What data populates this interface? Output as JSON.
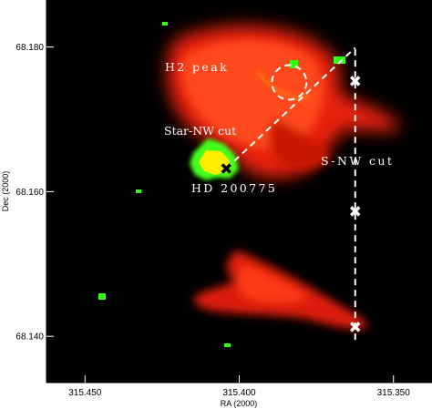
{
  "chart_data": {
    "type": "image",
    "xlabel": "RA (2000)",
    "ylabel": "Dec (2000)",
    "xlim": [
      315.4625,
      315.3375
    ],
    "ylim": [
      68.1336,
      68.1865
    ],
    "x_ticks": [
      {
        "value": 315.45,
        "label": "315.450"
      },
      {
        "value": 315.4,
        "label": "315.400"
      },
      {
        "value": 315.35,
        "label": "315.350"
      }
    ],
    "y_ticks": [
      {
        "value": 68.14,
        "label": "68.140"
      },
      {
        "value": 68.16,
        "label": "68.160"
      },
      {
        "value": 68.18,
        "label": "68.180"
      }
    ],
    "annotations": {
      "h2_peak": "H2 peak",
      "star_nw_cut": "Star-NW cut",
      "star": "HD 200775",
      "s_nw_cut": "S-NW cut"
    },
    "star_position": {
      "ra": 315.4042,
      "dec": 68.1632
    },
    "h2_peak_circle": {
      "ra": 315.3838,
      "dec": 68.1751,
      "radius_deg": 0.0056
    },
    "star_nw_cut": {
      "from": {
        "ra": 315.4042,
        "dec": 68.1632
      },
      "to": {
        "ra": 315.3624,
        "dec": 68.1799
      }
    },
    "s_nw_cut": {
      "ra": 315.3624,
      "dec_range": [
        68.1395,
        68.1803
      ]
    },
    "cut_markers": [
      {
        "ra": 315.3624,
        "dec": 68.1753
      },
      {
        "ra": 315.3624,
        "dec": 68.1573
      },
      {
        "ra": 315.3624,
        "dec": 68.1413
      }
    ],
    "colors": {
      "background": "#000000",
      "nebula": "#ff3a12",
      "h2_emission": "#33ff11",
      "star_core": "#ffee00",
      "overlay": "#ffffff"
    }
  }
}
